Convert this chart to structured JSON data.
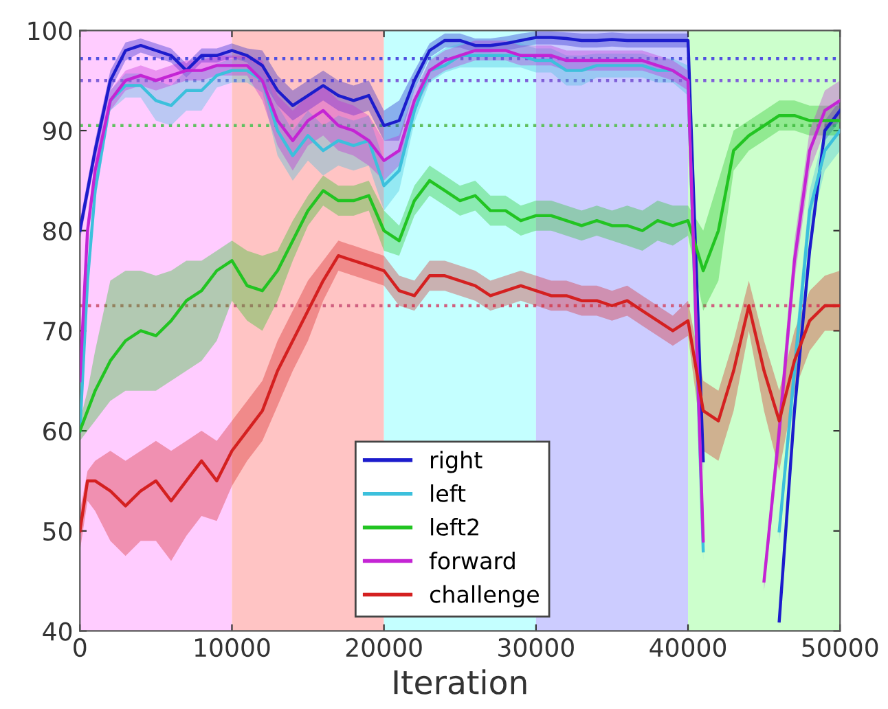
{
  "chart_data": {
    "type": "line",
    "xlabel": "Iteration",
    "x": [
      0,
      500,
      1000,
      2000,
      3000,
      4000,
      5000,
      6000,
      7000,
      8000,
      9000,
      10000,
      11000,
      12000,
      13000,
      14000,
      15000,
      16000,
      17000,
      18000,
      19000,
      20000,
      21000,
      22000,
      23000,
      24000,
      25000,
      26000,
      27000,
      28000,
      29000,
      30000,
      31000,
      32000,
      33000,
      34000,
      35000,
      36000,
      37000,
      38000,
      39000,
      40000,
      41000,
      42000,
      43000,
      44000,
      45000,
      46000,
      47000,
      48000,
      49000,
      50000
    ],
    "series": [
      {
        "name": "right",
        "color": "#1c1ccc",
        "values": [
          80,
          84,
          88,
          95,
          98,
          98.5,
          98,
          97.5,
          96,
          97.5,
          97.5,
          98,
          97.5,
          96.5,
          94,
          92.5,
          93.5,
          94.5,
          93.5,
          93,
          93.5,
          90.5,
          91,
          95,
          98,
          99,
          99,
          98.5,
          98.5,
          98.7,
          99,
          99.3,
          99.3,
          99.2,
          99,
          99,
          99.1,
          99,
          99,
          99,
          99,
          99,
          57,
          null,
          null,
          null,
          null,
          41,
          62,
          78,
          90,
          92
        ],
        "lower": [
          79,
          83,
          87,
          94,
          97,
          97.8,
          97.3,
          96.8,
          95.3,
          96.8,
          96.8,
          97.3,
          96.8,
          95,
          92.5,
          91,
          92,
          93,
          92,
          91.5,
          92,
          89,
          89,
          94,
          97.3,
          98.3,
          98.3,
          97.8,
          97.8,
          98,
          98.3,
          98.6,
          98.6,
          98.5,
          98.3,
          98.3,
          98.4,
          98.3,
          98.3,
          98.3,
          98.3,
          98.3,
          56,
          null,
          null,
          null,
          null,
          40.5,
          61,
          77,
          89,
          91
        ],
        "upper": [
          81,
          85,
          89,
          96,
          98.8,
          99.2,
          98.7,
          98.2,
          96.7,
          98.2,
          98.2,
          98.7,
          98.2,
          98,
          95.5,
          94,
          95,
          96,
          95,
          94.5,
          95,
          92,
          93,
          96,
          98.7,
          99.7,
          99.7,
          99.2,
          99.2,
          99.4,
          99.7,
          99.9,
          99.9,
          99.8,
          99.7,
          99.7,
          99.8,
          99.7,
          99.7,
          99.7,
          99.7,
          99.7,
          58,
          null,
          null,
          null,
          null,
          42,
          63,
          79,
          91,
          93
        ]
      },
      {
        "name": "left",
        "color": "#3cc0dc",
        "values": [
          60,
          75,
          84,
          93,
          94.5,
          94.5,
          93,
          92.5,
          94,
          94,
          95.5,
          96,
          96,
          95,
          90,
          87.5,
          89.5,
          88,
          89,
          88.5,
          89,
          84.5,
          86,
          92,
          96,
          96.5,
          97.5,
          97.5,
          97.5,
          97.5,
          97.5,
          97,
          97,
          96,
          96,
          96.5,
          96.5,
          96.5,
          96.5,
          96,
          96,
          95,
          48,
          null,
          null,
          null,
          null,
          50,
          66,
          82,
          88,
          90
        ],
        "lower": [
          59,
          74,
          83,
          92,
          93.3,
          93.3,
          91,
          90.5,
          92,
          92,
          94.3,
          94.8,
          94.8,
          93.8,
          87.5,
          85,
          87,
          85.5,
          86.5,
          86,
          86.5,
          82,
          84,
          90.8,
          94.8,
          95.8,
          96.3,
          96.3,
          96.3,
          96.3,
          96.3,
          95.8,
          95.8,
          94.5,
          94.5,
          95.3,
          95.3,
          95.3,
          95.3,
          94.8,
          94.8,
          93.5,
          47,
          null,
          null,
          null,
          null,
          49,
          64,
          80,
          86,
          88
        ],
        "upper": [
          61,
          76,
          85,
          94,
          95.7,
          95.7,
          95,
          94.5,
          96,
          96,
          96.7,
          97.2,
          97.2,
          96.2,
          92.5,
          90,
          92,
          90.5,
          91.5,
          91,
          91.5,
          87,
          88,
          93.2,
          97.2,
          98.2,
          98.7,
          98.7,
          98.7,
          98.7,
          98.7,
          98.2,
          98.2,
          97.5,
          97.5,
          97.7,
          97.7,
          97.7,
          97.7,
          97.2,
          97.2,
          96.5,
          49,
          null,
          null,
          null,
          null,
          51,
          68,
          84,
          90,
          92
        ]
      },
      {
        "name": "left2",
        "color": "#22c422",
        "values": [
          60,
          62,
          64,
          67,
          69,
          70,
          69.5,
          71,
          73,
          74,
          76,
          77,
          74.5,
          74,
          76,
          79,
          82,
          84,
          83,
          83,
          83.5,
          80,
          79,
          83,
          85,
          84,
          83,
          83.5,
          82,
          82,
          81,
          81.5,
          81.5,
          81,
          80.5,
          81,
          80.5,
          80.5,
          80,
          81,
          80.5,
          81,
          76,
          80,
          88,
          89.5,
          90.5,
          91.5,
          91.5,
          91,
          91,
          91
        ],
        "lower": [
          59,
          60,
          61,
          63,
          64,
          64,
          64,
          65,
          66,
          67,
          69,
          73,
          71,
          70,
          73,
          77,
          80.5,
          82.5,
          81.5,
          81.5,
          82,
          78,
          77.5,
          81.5,
          83.5,
          82.5,
          81.5,
          82,
          80.5,
          80.5,
          79.5,
          80,
          80,
          79.5,
          79,
          79.5,
          79,
          78.5,
          78,
          79,
          78.5,
          79.5,
          72,
          75,
          86,
          88,
          89,
          90,
          90,
          89.5,
          89.5,
          89.5
        ],
        "upper": [
          61,
          64,
          68,
          75,
          76,
          76,
          75.5,
          76,
          77,
          77,
          78,
          79,
          78,
          77.5,
          78,
          81,
          83.5,
          85.5,
          84.5,
          84.5,
          85,
          82,
          80.5,
          84.5,
          86.5,
          85.5,
          84.5,
          85,
          83.5,
          83.5,
          82.5,
          83,
          83,
          82.5,
          82,
          82.5,
          82,
          82.5,
          82,
          83,
          82.5,
          82.5,
          80,
          85,
          90,
          91,
          92,
          93,
          93,
          92.5,
          92.5,
          92.5
        ]
      },
      {
        "name": "forward",
        "color": "#c424d4",
        "values": [
          65,
          80,
          86,
          93,
          95,
          95.5,
          95,
          95.5,
          96,
          96,
          96.5,
          96.5,
          96.5,
          95,
          91,
          89,
          91,
          92,
          90.5,
          90,
          89,
          87,
          88,
          93,
          96,
          97,
          97.5,
          98,
          98,
          98,
          97.5,
          97.5,
          97.5,
          97,
          97,
          97,
          97,
          97,
          97,
          96.5,
          96,
          95,
          49,
          null,
          null,
          null,
          45,
          60,
          77,
          88,
          92,
          93
        ],
        "lower": [
          64,
          79,
          85,
          92,
          94,
          94.5,
          94,
          94.5,
          95,
          95,
          95.5,
          95.5,
          95.5,
          93,
          88.5,
          86,
          88.5,
          89.5,
          88,
          87.5,
          86.5,
          85,
          86.5,
          92,
          95,
          96,
          96.5,
          97,
          97,
          97,
          96.5,
          96.5,
          96.5,
          96,
          96,
          96,
          96,
          96,
          96,
          95.5,
          95,
          94,
          48,
          null,
          null,
          null,
          44,
          58,
          75,
          86,
          90,
          91
        ],
        "upper": [
          66,
          81,
          87,
          94,
          96,
          96.5,
          96,
          96.5,
          97,
          97,
          97.5,
          97.5,
          97.5,
          97,
          93.5,
          92,
          93.5,
          94.5,
          93,
          92.5,
          91.5,
          89,
          89.5,
          94,
          97,
          98,
          98.5,
          99,
          99,
          99,
          98.5,
          98.5,
          98.5,
          98,
          98,
          98,
          98,
          98,
          98,
          97.5,
          97,
          96,
          50,
          null,
          null,
          null,
          46,
          62,
          79,
          90,
          94,
          95
        ]
      },
      {
        "name": "challenge",
        "color": "#d42020",
        "values": [
          50,
          55,
          55,
          54,
          52.5,
          54,
          55,
          53,
          55,
          57,
          55,
          58,
          60,
          62,
          66,
          69,
          72,
          75,
          77.5,
          77,
          76.5,
          76,
          74,
          73.5,
          75.5,
          75.5,
          75,
          74.5,
          73.5,
          74,
          74.5,
          74,
          73.5,
          73.5,
          73,
          73,
          72.5,
          73,
          72,
          71,
          70,
          71,
          62,
          61,
          66,
          72.5,
          66,
          61,
          67,
          71,
          72.5,
          72.5
        ],
        "lower": [
          48,
          53,
          52,
          49,
          47.5,
          49,
          49,
          47,
          49.5,
          51.5,
          51,
          54.5,
          57,
          59,
          62.5,
          66,
          69,
          73,
          76,
          75.5,
          75,
          74.5,
          72.5,
          72,
          74,
          74,
          73.5,
          73,
          72,
          72.5,
          73,
          72.5,
          72,
          72,
          71.5,
          71.5,
          71,
          71.5,
          70.5,
          69.5,
          68.5,
          69.5,
          58,
          57,
          62,
          70,
          62,
          56,
          64,
          68,
          70,
          70
        ],
        "upper": [
          52,
          56,
          57,
          58,
          57,
          58,
          59,
          58,
          59,
          60,
          59,
          61,
          63,
          65,
          69,
          72,
          75,
          77,
          79,
          78.5,
          78,
          77.5,
          75.5,
          75,
          77,
          77,
          76.5,
          76,
          75,
          75.5,
          76,
          75.5,
          75,
          75,
          74.5,
          74.5,
          74,
          74.5,
          73.5,
          72.5,
          71.5,
          73,
          65,
          64,
          69,
          75,
          69,
          64,
          70,
          74,
          75.5,
          76
        ]
      }
    ],
    "bands": [
      {
        "axis": "x",
        "from": 0,
        "to": 10000,
        "color": "#ffccff"
      },
      {
        "axis": "x",
        "from": 10000,
        "to": 20000,
        "color": "#ffc4c4"
      },
      {
        "axis": "x",
        "from": 20000,
        "to": 30000,
        "color": "#c4ffff"
      },
      {
        "axis": "x",
        "from": 30000,
        "to": 40000,
        "color": "#ccccff"
      },
      {
        "axis": "x",
        "from": 40000,
        "to": 50000,
        "color": "#ccffcc"
      }
    ],
    "ref_lines": [
      {
        "axis": "y",
        "value": 97.2,
        "color": "#5050e0",
        "line_style": "dotted"
      },
      {
        "axis": "y",
        "value": 95,
        "color": "#8060d8",
        "line_style": "dotted"
      },
      {
        "axis": "y",
        "value": 90.5,
        "color": "#60c060",
        "line_style": "dotted"
      },
      {
        "axis": "y",
        "value": 72.5,
        "color": "#d06080",
        "line_style": "dotted"
      }
    ],
    "xlim": [
      0,
      50000
    ],
    "ylim": [
      40,
      100
    ],
    "xticks": [
      0,
      10000,
      20000,
      30000,
      40000,
      50000
    ],
    "yticks": [
      40,
      50,
      60,
      70,
      80,
      90,
      100
    ],
    "grid": false,
    "legend": "bottom",
    "marker": "none",
    "line_style": "solid"
  }
}
